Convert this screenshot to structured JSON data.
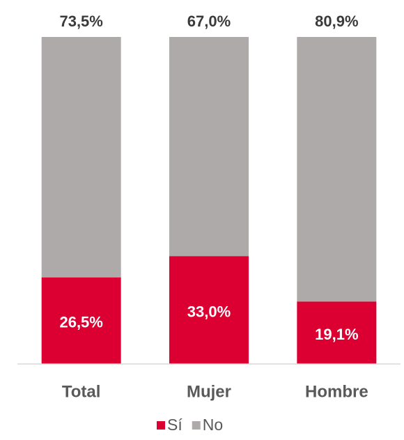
{
  "chart_data": {
    "type": "stacked_bar",
    "categories": [
      "Total",
      "Mujer",
      "Hombre"
    ],
    "series": [
      {
        "name": "Sí",
        "color": "#dc0032",
        "values": [
          26.5,
          33.0,
          19.1
        ],
        "value_labels": [
          "26,5%",
          "33,0%",
          "19,1%"
        ]
      },
      {
        "name": "No",
        "color": "#aeaaaa",
        "values": [
          73.5,
          67.0,
          80.9
        ],
        "value_labels": [
          "73,5%",
          "67,0%",
          "80,9%"
        ]
      }
    ],
    "ylim": [
      0,
      100
    ],
    "legend": "bottom"
  }
}
